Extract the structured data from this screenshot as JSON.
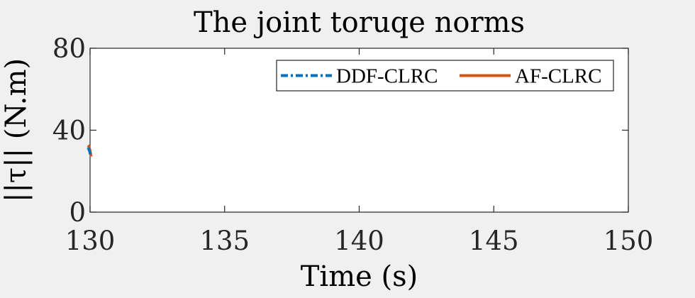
{
  "chart_data": {
    "type": "line",
    "title": "The joint toruqe norms",
    "xlabel": "Time (s)",
    "ylabel": "||τ|| (N.m)",
    "xlim": [
      130,
      150
    ],
    "ylim": [
      0,
      80
    ],
    "x_ticks": [
      "130",
      "135",
      "140",
      "145",
      "150"
    ],
    "y_ticks": [
      "0",
      "40",
      "80"
    ],
    "grid": false,
    "legend_position": "top-right",
    "series": [
      {
        "name": "DDF-CLRC",
        "color": "#0072BD",
        "style": "dash-dot",
        "x": [
          129.93,
          129.96,
          129.99,
          130.01,
          130.03
        ],
        "y": [
          31.5,
          30.5,
          29.5,
          28.0,
          26.8
        ]
      },
      {
        "name": "AF-CLRC",
        "color": "#D95319",
        "style": "solid",
        "x": [
          129.92,
          129.95,
          129.98,
          130.0,
          130.02,
          130.04
        ],
        "y": [
          32.6,
          32.2,
          31.0,
          29.8,
          28.5,
          27.2
        ]
      }
    ]
  }
}
